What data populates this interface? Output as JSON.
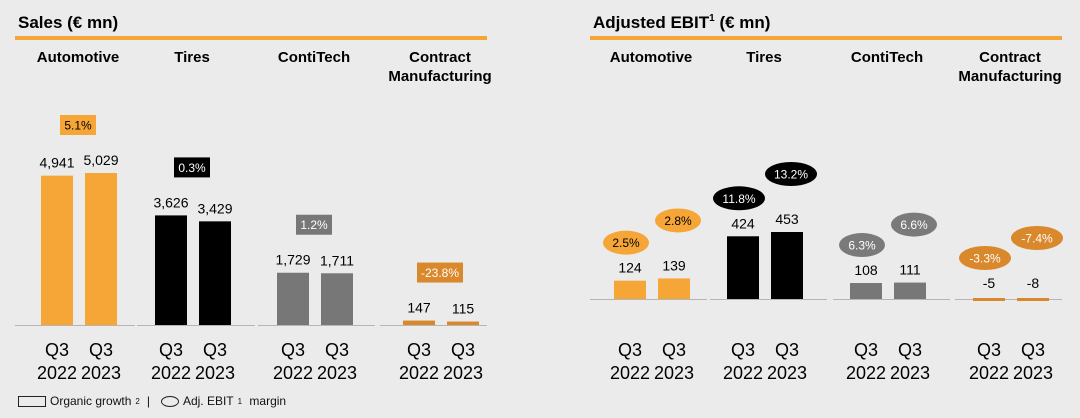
{
  "colors": {
    "accent": "#f5a637",
    "black": "#000000",
    "gray": "#777777",
    "orange_dark": "#d9882b",
    "header_rule": "#f5a637",
    "label_box_orange": "#f5a637",
    "ellipse_gray": "#7a7a7a"
  },
  "legend": {
    "organic_label": "Organic growth",
    "organic_sup": "2",
    "separator": "|",
    "margin_label": "Adj. EBIT",
    "margin_sup": "1",
    "margin_suffix": " margin"
  },
  "chart_data": [
    {
      "type": "bar",
      "title": "Sales (€ mn)",
      "x_ticks": [
        "Q3\n2022",
        "Q3\n2023"
      ],
      "segments": [
        {
          "name": "Automotive",
          "values": [
            4941,
            5029
          ],
          "value_labels": [
            "4,941",
            "5,029"
          ],
          "growth": "5.1%",
          "color": "#f5a637",
          "badge_style": "box-orange"
        },
        {
          "name": "Tires",
          "values": [
            3626,
            3429
          ],
          "value_labels": [
            "3,626",
            "3,429"
          ],
          "growth": "0.3%",
          "color": "#000000",
          "badge_style": "box-black"
        },
        {
          "name": "ContiTech",
          "values": [
            1729,
            1711
          ],
          "value_labels": [
            "1,729",
            "1,711"
          ],
          "growth": "1.2%",
          "color": "#777777",
          "badge_style": "box-gray"
        },
        {
          "name": "Contract Manufacturing",
          "values": [
            147,
            115
          ],
          "value_labels": [
            "147",
            "115"
          ],
          "growth": "-23.8%",
          "color": "#d9882b",
          "badge_style": "box-darkorange"
        }
      ]
    },
    {
      "type": "bar",
      "title": "Adjusted EBIT",
      "title_sup": "1",
      "title_suffix": " (€ mn)",
      "x_ticks": [
        "Q3\n2022",
        "Q3\n2023"
      ],
      "segments": [
        {
          "name": "Automotive",
          "values": [
            124,
            139
          ],
          "value_labels": [
            "124",
            "139"
          ],
          "margins": [
            "2.5%",
            "2.8%"
          ],
          "color": "#f5a637",
          "badge_style": "ell-orange"
        },
        {
          "name": "Tires",
          "values": [
            424,
            453
          ],
          "value_labels": [
            "424",
            "453"
          ],
          "margins": [
            "11.8%",
            "13.2%"
          ],
          "color": "#000000",
          "badge_style": "ell-black"
        },
        {
          "name": "ContiTech",
          "values": [
            108,
            111
          ],
          "value_labels": [
            "108",
            "111"
          ],
          "margins": [
            "6.3%",
            "6.6%"
          ],
          "color": "#777777",
          "badge_style": "ell-gray"
        },
        {
          "name": "Contract Manufacturing",
          "values": [
            -5,
            -8
          ],
          "value_labels": [
            "-5",
            "-8"
          ],
          "margins": [
            "-3.3%",
            "-7.4%"
          ],
          "color": "#d9882b",
          "badge_style": "ell-darkorange"
        }
      ]
    }
  ]
}
